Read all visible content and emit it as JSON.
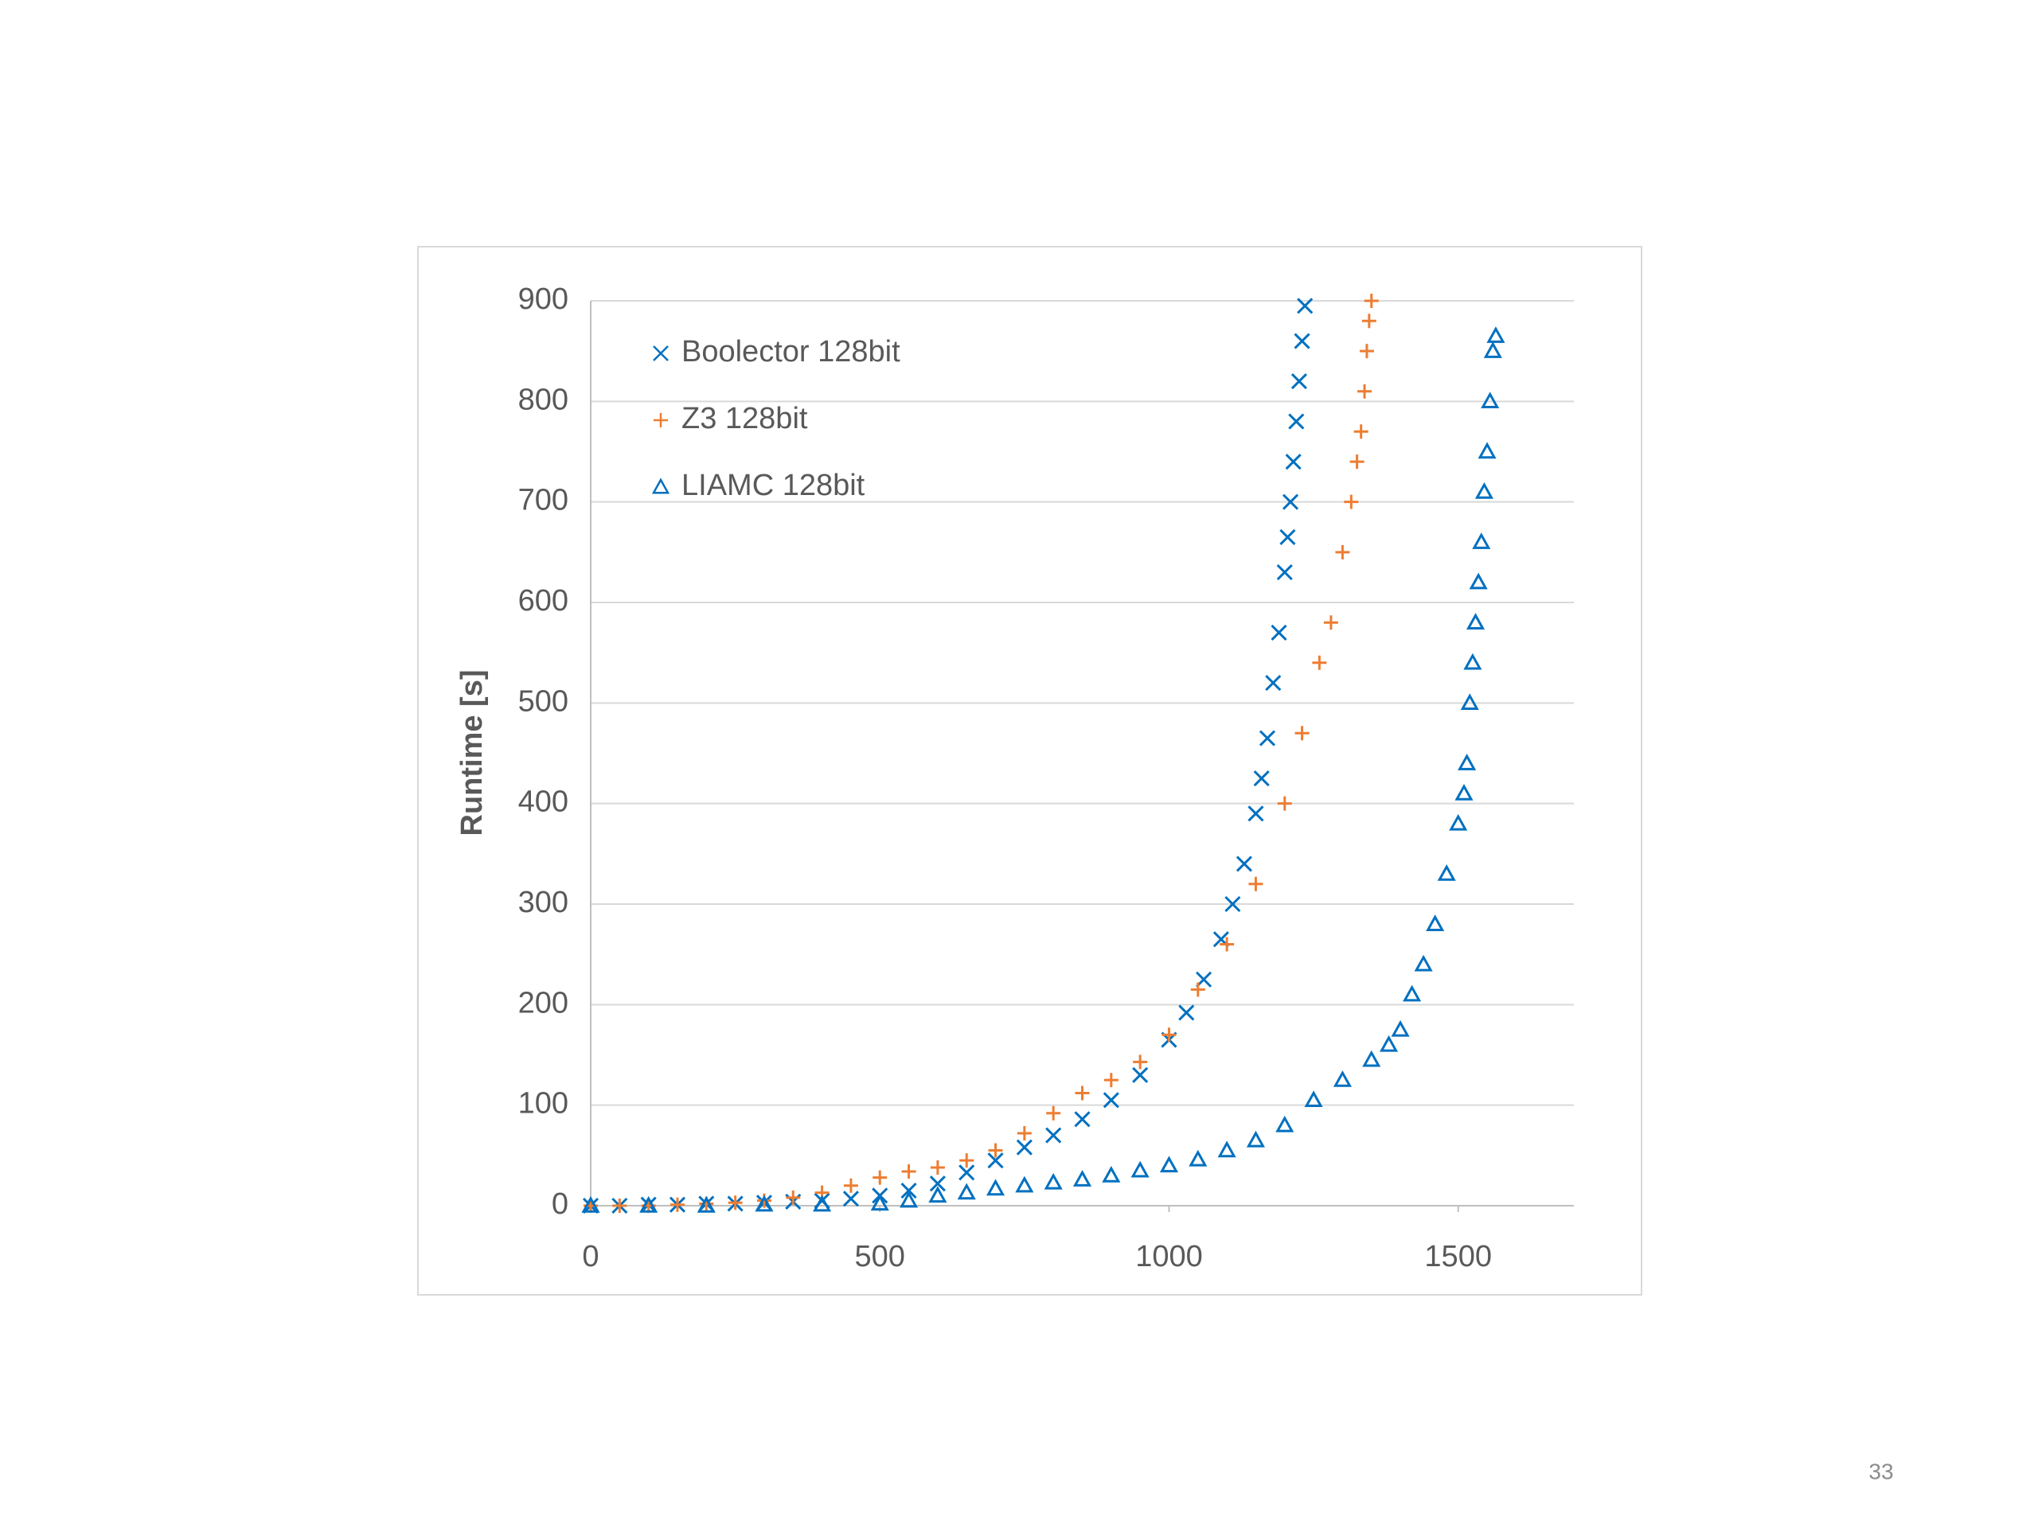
{
  "chart_data": {
    "type": "scatter",
    "y_label": "Runtime [s]",
    "xlim": [
      0,
      1700
    ],
    "xticks": [
      0,
      500,
      1000,
      1500
    ],
    "ylim": [
      0,
      900
    ],
    "yticks": [
      0,
      100,
      200,
      300,
      400,
      500,
      600,
      700,
      800,
      900
    ],
    "grid": true,
    "legend": "upper left",
    "series": [
      {
        "name": "Boolector 128bit",
        "color": "#0070c0",
        "marker": "x",
        "x": [
          0,
          50,
          100,
          150,
          200,
          250,
          300,
          350,
          400,
          450,
          500,
          550,
          600,
          650,
          700,
          750,
          800,
          850,
          900,
          950,
          1000,
          1030,
          1060,
          1090,
          1110,
          1130,
          1150,
          1160,
          1170,
          1180,
          1190,
          1200,
          1205,
          1210,
          1215,
          1220,
          1225,
          1230,
          1235
        ],
        "values": [
          0,
          0,
          1,
          1,
          2,
          2,
          3,
          4,
          5,
          7,
          10,
          15,
          22,
          33,
          45,
          58,
          70,
          86,
          105,
          130,
          165,
          192,
          225,
          265,
          300,
          340,
          390,
          425,
          465,
          520,
          570,
          630,
          665,
          700,
          740,
          780,
          820,
          860,
          895
        ]
      },
      {
        "name": "Z3 128bit",
        "color": "#ed7d31",
        "marker": "+",
        "x": [
          0,
          50,
          100,
          150,
          200,
          250,
          300,
          350,
          400,
          450,
          500,
          550,
          600,
          650,
          700,
          750,
          800,
          850,
          900,
          950,
          1000,
          1050,
          1100,
          1150,
          1200,
          1230,
          1260,
          1280,
          1300,
          1315,
          1325,
          1332,
          1338,
          1342,
          1346,
          1350
        ],
        "values": [
          0,
          0,
          0,
          1,
          2,
          3,
          5,
          8,
          13,
          20,
          28,
          34,
          38,
          45,
          55,
          72,
          92,
          112,
          125,
          143,
          170,
          215,
          260,
          320,
          400,
          470,
          540,
          580,
          650,
          700,
          740,
          770,
          810,
          850,
          880,
          900
        ]
      },
      {
        "name": "LIAMC 128bit",
        "color": "#0070c0",
        "marker": "triangle",
        "x": [
          0,
          100,
          200,
          300,
          400,
          500,
          550,
          600,
          650,
          700,
          750,
          800,
          850,
          900,
          950,
          1000,
          1050,
          1100,
          1150,
          1200,
          1250,
          1300,
          1350,
          1380,
          1400,
          1420,
          1440,
          1460,
          1480,
          1500,
          1510,
          1515,
          1520,
          1525,
          1530,
          1535,
          1540,
          1545,
          1550,
          1555,
          1560,
          1565
        ],
        "values": [
          0,
          0,
          0,
          1,
          1,
          2,
          5,
          10,
          13,
          17,
          20,
          23,
          26,
          30,
          35,
          40,
          46,
          55,
          65,
          80,
          105,
          125,
          145,
          160,
          175,
          210,
          240,
          280,
          330,
          380,
          410,
          440,
          500,
          540,
          580,
          620,
          660,
          710,
          750,
          800,
          850,
          865
        ]
      }
    ]
  },
  "page_number": "33"
}
